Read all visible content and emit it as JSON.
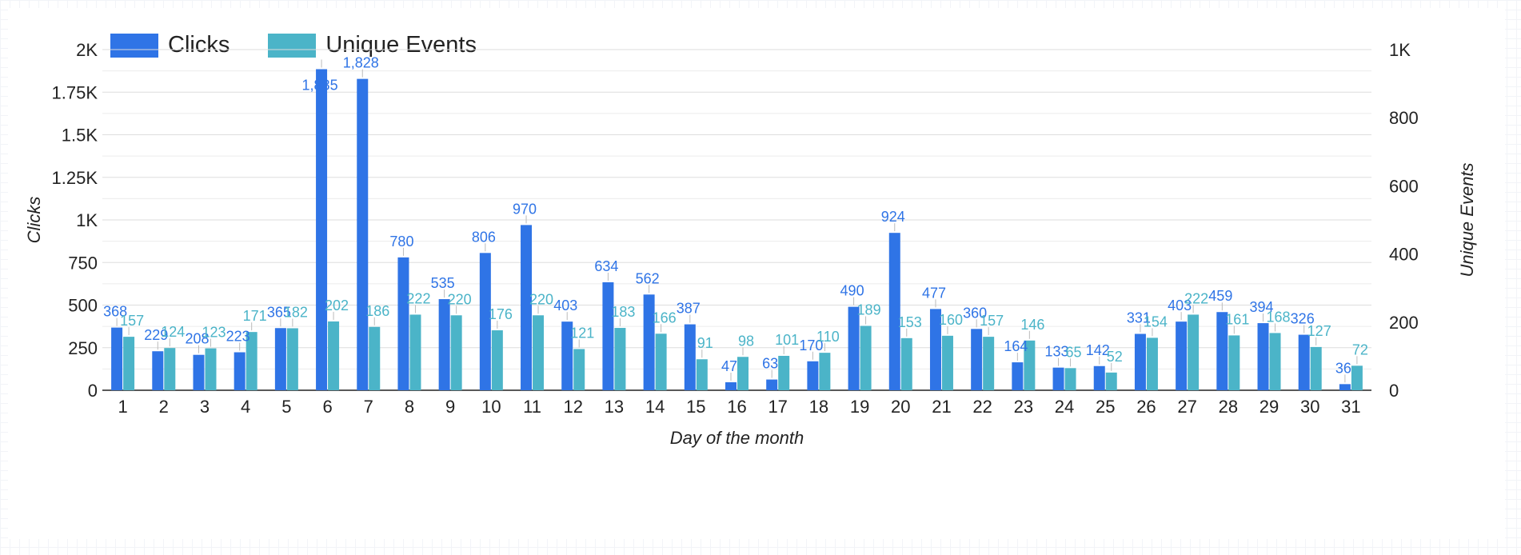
{
  "colors": {
    "clicks": "#2f74e6",
    "unique": "#4bb4c8",
    "grid": "#dddddd",
    "axis": "#222222"
  },
  "legend": {
    "clicks": "Clicks",
    "unique": "Unique Events"
  },
  "chart_data": {
    "type": "bar",
    "categories": [
      "1",
      "2",
      "3",
      "4",
      "5",
      "6",
      "7",
      "8",
      "9",
      "10",
      "11",
      "12",
      "13",
      "14",
      "15",
      "16",
      "17",
      "18",
      "19",
      "20",
      "21",
      "22",
      "23",
      "24",
      "25",
      "26",
      "27",
      "28",
      "29",
      "30",
      "31"
    ],
    "series": [
      {
        "name": "Clicks",
        "axis": "left",
        "values": [
          368,
          229,
          208,
          223,
          365,
          1885,
          1828,
          780,
          535,
          806,
          970,
          403,
          634,
          562,
          387,
          47,
          63,
          170,
          490,
          924,
          477,
          360,
          164,
          133,
          142,
          331,
          403,
          459,
          394,
          326,
          36
        ],
        "labels": [
          "368",
          "229",
          "208",
          "223",
          "365",
          "1,885",
          "1,828",
          "780",
          "535",
          "806",
          "970",
          "403",
          "634",
          "562",
          "387",
          "47",
          "63",
          "170",
          "490",
          "924",
          "477",
          "360",
          "164",
          "133",
          "142",
          "331",
          "403",
          "459",
          "394",
          "326",
          "36"
        ]
      },
      {
        "name": "Unique Events",
        "axis": "right",
        "values": [
          157,
          124,
          123,
          171,
          182,
          202,
          186,
          222,
          220,
          176,
          220,
          121,
          183,
          166,
          91,
          98,
          101,
          110,
          189,
          153,
          160,
          157,
          146,
          65,
          52,
          154,
          222,
          161,
          168,
          127,
          72
        ],
        "labels": [
          "157",
          "124",
          "123",
          "171",
          "182",
          "202",
          "186",
          "222",
          "220",
          "176",
          "220",
          "121",
          "183",
          "166",
          "91",
          "98",
          "101",
          "110",
          "189",
          "153",
          "160",
          "157",
          "146",
          "65",
          "52",
          "154",
          "222",
          "161",
          "168",
          "127",
          "72"
        ]
      }
    ],
    "left_axis": {
      "title": "Clicks",
      "ylim": [
        0,
        2000
      ],
      "ticks": [
        0,
        250,
        500,
        750,
        1000,
        1250,
        1500,
        1750,
        2000
      ],
      "tick_labels": [
        "0",
        "250",
        "500",
        "750",
        "1K",
        "1.25K",
        "1.5K",
        "1.75K",
        "2K"
      ]
    },
    "right_axis": {
      "title": "Unique Events",
      "ylim": [
        0,
        1000
      ],
      "ticks": [
        0,
        200,
        400,
        600,
        800,
        1000
      ],
      "tick_labels": [
        "0",
        "200",
        "400",
        "600",
        "800",
        "1K"
      ]
    },
    "xlabel": "Day of the month",
    "grid": true,
    "legend_position": "top-left"
  }
}
